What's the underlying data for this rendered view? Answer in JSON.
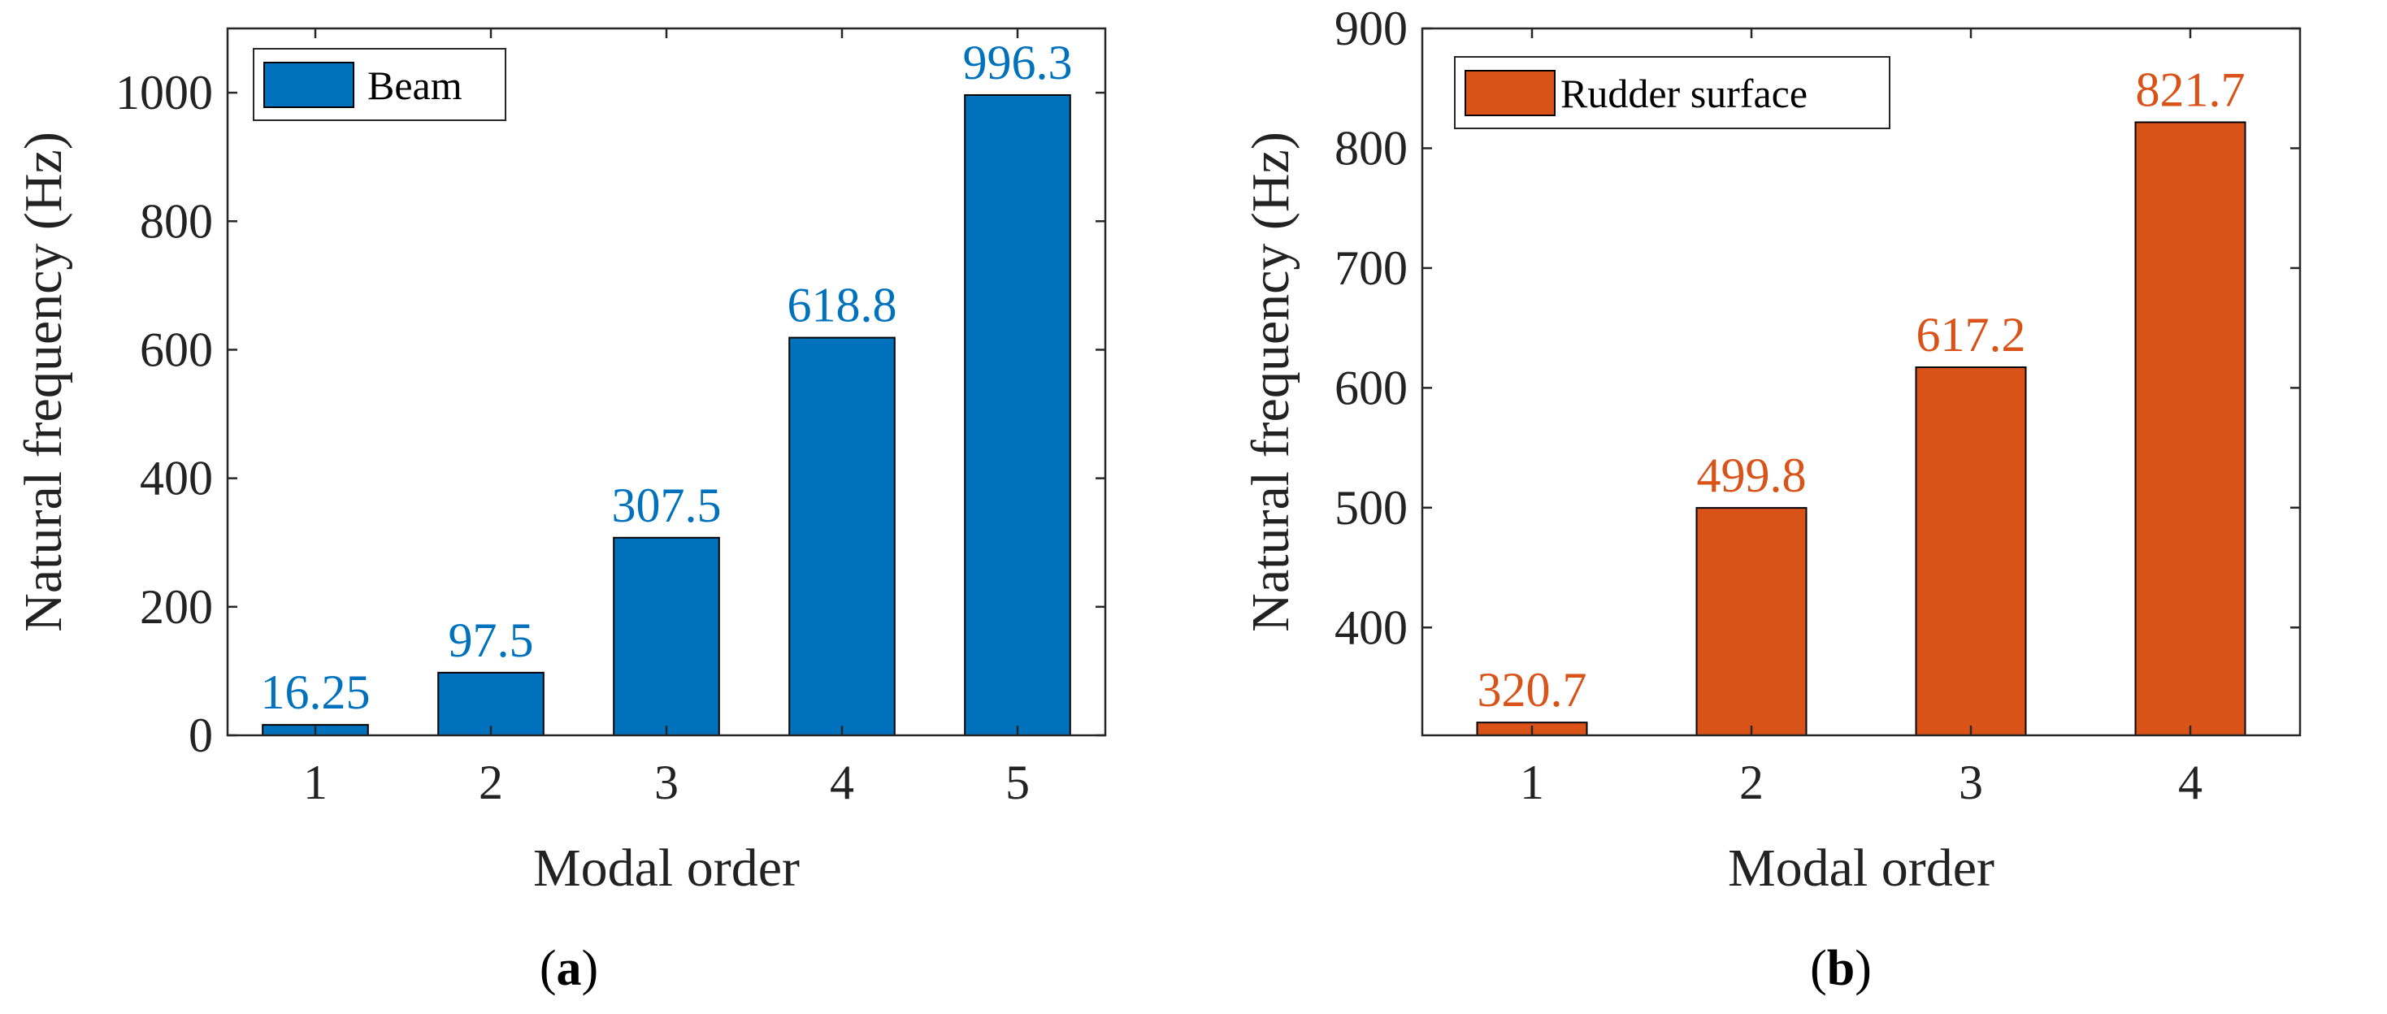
{
  "chart_data": [
    {
      "type": "bar",
      "panel_label": "a",
      "categories": [
        "1",
        "2",
        "3",
        "4",
        "5"
      ],
      "series": [
        {
          "name": "Beam",
          "values": [
            16.25,
            97.5,
            307.5,
            618.8,
            996.3
          ],
          "labels": [
            "16.25",
            "97.5",
            "307.5",
            "618.8",
            "996.3"
          ],
          "color": "#0072BD"
        }
      ],
      "xlabel": "Modal order",
      "ylabel": "Natural frequency (Hz)",
      "ylim": [
        0,
        1100
      ],
      "yticks": [
        0,
        200,
        400,
        600,
        800,
        1000
      ],
      "legend": "top-left",
      "grid": false
    },
    {
      "type": "bar",
      "panel_label": "b",
      "categories": [
        "1",
        "2",
        "3",
        "4"
      ],
      "series": [
        {
          "name": "Rudder surface",
          "values": [
            320.7,
            499.8,
            617.2,
            821.7
          ],
          "labels": [
            "320.7",
            "499.8",
            "617.2",
            "821.7"
          ],
          "color": "#D95319"
        }
      ],
      "xlabel": "Modal order",
      "ylabel": "Natural frequency (Hz)",
      "ylim": [
        310,
        900
      ],
      "yticks": [
        400,
        500,
        600,
        700,
        800,
        900
      ],
      "legend": "top-left",
      "grid": false
    }
  ]
}
